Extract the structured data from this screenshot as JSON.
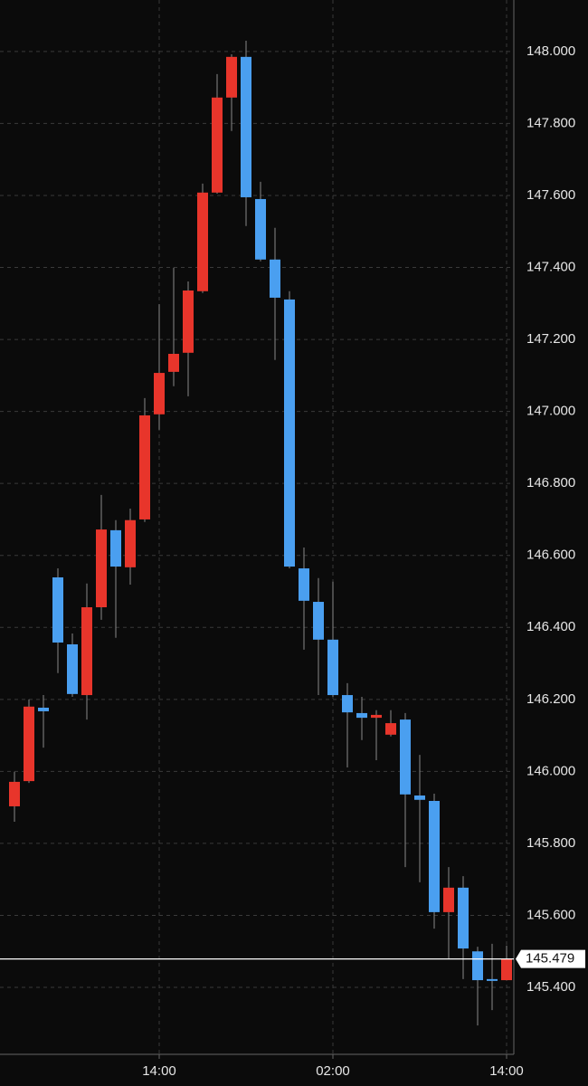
{
  "chart_data": {
    "type": "candlestick",
    "categories": [
      null,
      null,
      null,
      null,
      null,
      null,
      null,
      null,
      null,
      null,
      "14:00",
      null,
      null,
      null,
      null,
      null,
      null,
      null,
      null,
      null,
      null,
      null,
      "02:00",
      null,
      null,
      null,
      null,
      null,
      null,
      null,
      null,
      null,
      null,
      null,
      "14:00"
    ],
    "open": [
      145.903,
      145.973,
      146.177,
      146.539,
      146.353,
      146.212,
      146.456,
      146.67,
      146.567,
      146.7,
      146.992,
      147.11,
      147.163,
      147.334,
      147.608,
      147.872,
      147.985,
      147.59,
      147.422,
      147.311,
      146.564,
      146.471,
      146.366,
      146.212,
      146.162,
      146.149,
      146.102,
      146.144,
      145.933,
      145.918,
      145.609,
      145.677,
      145.5,
      145.423,
      145.42
    ],
    "high": [
      145.999,
      146.2,
      146.212,
      146.564,
      146.383,
      146.522,
      146.768,
      146.698,
      146.73,
      147.037,
      147.298,
      147.399,
      147.361,
      147.633,
      147.937,
      147.992,
      148.03,
      147.638,
      147.51,
      147.334,
      146.622,
      146.537,
      146.527,
      146.245,
      146.207,
      146.17,
      146.17,
      146.162,
      146.046,
      145.938,
      145.734,
      145.709,
      145.513,
      145.521,
      145.516
    ],
    "low": [
      145.86,
      145.968,
      146.066,
      146.273,
      146.207,
      146.144,
      146.421,
      146.371,
      146.519,
      146.693,
      146.949,
      147.07,
      147.042,
      147.329,
      147.605,
      147.779,
      147.515,
      147.417,
      147.143,
      146.564,
      146.338,
      146.212,
      146.207,
      146.011,
      146.087,
      146.031,
      146.097,
      145.734,
      145.692,
      145.563,
      145.478,
      145.423,
      145.294,
      145.337,
      145.42
    ],
    "close": [
      145.971,
      146.18,
      146.167,
      146.358,
      146.215,
      146.456,
      146.672,
      146.569,
      146.698,
      146.989,
      147.107,
      147.16,
      147.336,
      147.608,
      147.872,
      147.985,
      147.595,
      147.422,
      147.316,
      146.569,
      146.474,
      146.366,
      146.212,
      146.164,
      146.149,
      146.157,
      146.134,
      145.936,
      145.921,
      145.609,
      145.677,
      145.508,
      145.42,
      145.42,
      145.479
    ],
    "up_color": "#e8352b",
    "down_color": "#4a9ff0",
    "ylim": [
      145.214,
      148.143
    ],
    "yticks": [
      {
        "value": 145.4,
        "label": "145.400"
      },
      {
        "value": 145.6,
        "label": "145.600"
      },
      {
        "value": 145.8,
        "label": "145.800"
      },
      {
        "value": 146.0,
        "label": "146.000"
      },
      {
        "value": 146.2,
        "label": "146.200"
      },
      {
        "value": 146.4,
        "label": "146.400"
      },
      {
        "value": 146.6,
        "label": "146.600"
      },
      {
        "value": 146.8,
        "label": "146.800"
      },
      {
        "value": 147.0,
        "label": "147.000"
      },
      {
        "value": 147.2,
        "label": "147.200"
      },
      {
        "value": 147.4,
        "label": "147.400"
      },
      {
        "value": 147.6,
        "label": "147.600"
      },
      {
        "value": 147.8,
        "label": "147.800"
      },
      {
        "value": 148.0,
        "label": "148.000"
      }
    ],
    "grid": true
  }
}
